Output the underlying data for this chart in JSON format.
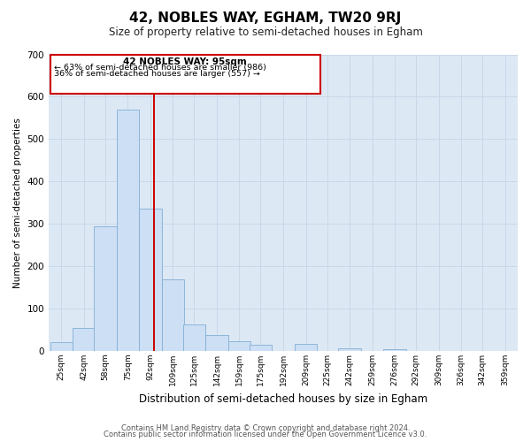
{
  "title": "42, NOBLES WAY, EGHAM, TW20 9RJ",
  "subtitle": "Size of property relative to semi-detached houses in Egham",
  "xlabel": "Distribution of semi-detached houses by size in Egham",
  "ylabel": "Number of semi-detached properties",
  "bin_centers": [
    25,
    42,
    58,
    75,
    92,
    109,
    125,
    142,
    159,
    175,
    192,
    209,
    225,
    242,
    259,
    276,
    292,
    309,
    326,
    342,
    359
  ],
  "bar_heights": [
    20,
    55,
    295,
    570,
    335,
    168,
    62,
    37,
    22,
    15,
    0,
    16,
    0,
    7,
    0,
    5,
    0,
    0,
    0,
    0,
    0
  ],
  "bin_width": 17,
  "bar_color": "#ccdff5",
  "bar_edgecolor": "#82afd3",
  "property_line_x": 95,
  "property_line_color": "#cc0000",
  "annotation_title": "42 NOBLES WAY: 95sqm",
  "annotation_line1": "← 63% of semi-detached houses are smaller (986)",
  "annotation_line2": "36% of semi-detached houses are larger (557) →",
  "annotation_box_edgecolor": "#cc0000",
  "annotation_box_facecolor": "white",
  "ylim": [
    0,
    700
  ],
  "yticks": [
    0,
    100,
    200,
    300,
    400,
    500,
    600,
    700
  ],
  "xtick_labels": [
    "25sqm",
    "42sqm",
    "58sqm",
    "75sqm",
    "92sqm",
    "109sqm",
    "125sqm",
    "142sqm",
    "159sqm",
    "175sqm",
    "192sqm",
    "209sqm",
    "225sqm",
    "242sqm",
    "259sqm",
    "276sqm",
    "292sqm",
    "309sqm",
    "326sqm",
    "342sqm",
    "359sqm"
  ],
  "grid_color": "#c8d8e8",
  "background_color": "#dde8f5",
  "footer_line1": "Contains HM Land Registry data © Crown copyright and database right 2024.",
  "footer_line2": "Contains public sector information licensed under the Open Government Licence v3.0.",
  "title_fontsize": 11,
  "subtitle_fontsize": 8.5,
  "ylabel_fontsize": 7.5,
  "xlabel_fontsize": 8.5,
  "ytick_fontsize": 7.5,
  "xtick_fontsize": 6.5,
  "footer_fontsize": 6.0
}
